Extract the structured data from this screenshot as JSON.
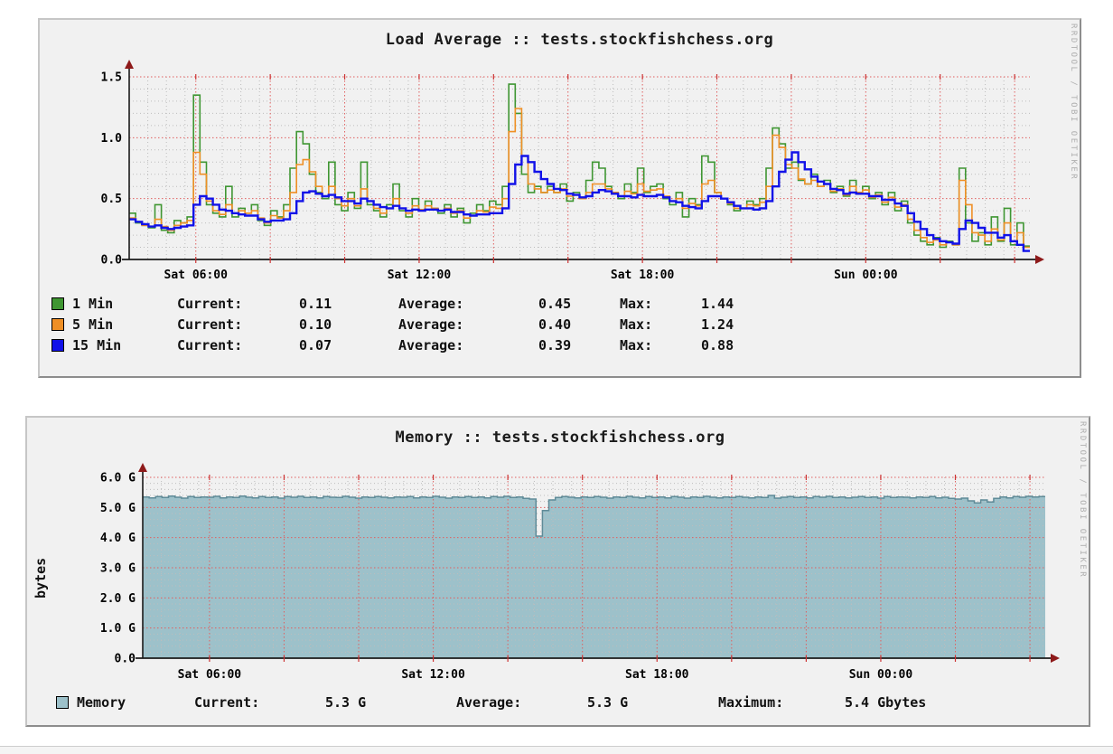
{
  "watermark": "RRDTOOL / TOBI OETIKER",
  "chart_data": [
    {
      "type": "line",
      "title": "Load Average :: tests.stockfishchess.org",
      "xlabel": "",
      "ylabel": "",
      "ylim": [
        0,
        1.5
      ],
      "x_window_hours": 24.2,
      "x_first_tick_hour": 1.79,
      "x_tick_interval_hours": 6,
      "x_tick_labels": [
        "Sat 06:00",
        "Sat 12:00",
        "Sat 18:00",
        "Sun 00:00"
      ],
      "y_tick_labels": [
        "0.0",
        "0.5",
        "1.0",
        "1.5"
      ],
      "grid": {
        "major_y": 0.5,
        "minor_y": 0.1,
        "major_x_hours": 2,
        "minor_x_hours": 0.5,
        "grid_on": true
      },
      "legend_position": "bottom-left",
      "series": [
        {
          "name": "1 Min",
          "color": "#3f9632",
          "width": 1.6,
          "values": [
            0.38,
            0.3,
            0.28,
            0.26,
            0.45,
            0.24,
            0.22,
            0.32,
            0.3,
            0.35,
            1.35,
            0.8,
            0.45,
            0.38,
            0.35,
            0.6,
            0.35,
            0.42,
            0.38,
            0.45,
            0.32,
            0.28,
            0.4,
            0.35,
            0.45,
            0.75,
            1.05,
            0.95,
            0.7,
            0.55,
            0.5,
            0.8,
            0.45,
            0.4,
            0.55,
            0.42,
            0.8,
            0.45,
            0.4,
            0.35,
            0.45,
            0.62,
            0.4,
            0.35,
            0.5,
            0.4,
            0.48,
            0.42,
            0.38,
            0.45,
            0.35,
            0.42,
            0.3,
            0.38,
            0.45,
            0.4,
            0.48,
            0.45,
            0.6,
            1.44,
            1.2,
            0.7,
            0.55,
            0.6,
            0.55,
            0.6,
            0.55,
            0.62,
            0.48,
            0.55,
            0.5,
            0.65,
            0.8,
            0.75,
            0.6,
            0.55,
            0.5,
            0.62,
            0.55,
            0.75,
            0.55,
            0.6,
            0.62,
            0.5,
            0.45,
            0.55,
            0.35,
            0.5,
            0.45,
            0.85,
            0.8,
            0.55,
            0.5,
            0.45,
            0.4,
            0.42,
            0.48,
            0.45,
            0.5,
            0.75,
            1.08,
            0.95,
            0.75,
            0.8,
            0.65,
            0.62,
            0.7,
            0.6,
            0.65,
            0.55,
            0.6,
            0.52,
            0.65,
            0.55,
            0.6,
            0.5,
            0.55,
            0.45,
            0.55,
            0.4,
            0.48,
            0.3,
            0.2,
            0.15,
            0.12,
            0.18,
            0.1,
            0.15,
            0.12,
            0.75,
            0.3,
            0.15,
            0.22,
            0.12,
            0.35,
            0.15,
            0.42,
            0.12,
            0.3,
            0.11
          ]
        },
        {
          "name": "5 Min",
          "color": "#ef8f25",
          "width": 1.6,
          "values": [
            0.34,
            0.31,
            0.28,
            0.27,
            0.33,
            0.27,
            0.24,
            0.28,
            0.3,
            0.32,
            0.88,
            0.7,
            0.48,
            0.4,
            0.37,
            0.45,
            0.38,
            0.4,
            0.38,
            0.4,
            0.34,
            0.3,
            0.36,
            0.34,
            0.4,
            0.55,
            0.78,
            0.82,
            0.72,
            0.6,
            0.52,
            0.6,
            0.5,
            0.44,
            0.5,
            0.44,
            0.58,
            0.48,
            0.42,
            0.38,
            0.42,
            0.5,
            0.42,
            0.38,
            0.44,
            0.41,
            0.44,
            0.42,
            0.4,
            0.42,
            0.38,
            0.4,
            0.34,
            0.36,
            0.4,
            0.39,
            0.43,
            0.42,
            0.5,
            1.05,
            1.24,
            0.85,
            0.62,
            0.58,
            0.55,
            0.57,
            0.55,
            0.58,
            0.52,
            0.53,
            0.5,
            0.55,
            0.62,
            0.62,
            0.58,
            0.55,
            0.52,
            0.56,
            0.54,
            0.62,
            0.56,
            0.57,
            0.58,
            0.52,
            0.48,
            0.5,
            0.42,
            0.46,
            0.44,
            0.62,
            0.65,
            0.55,
            0.5,
            0.46,
            0.42,
            0.42,
            0.45,
            0.44,
            0.47,
            0.6,
            1.02,
            0.92,
            0.78,
            0.75,
            0.66,
            0.62,
            0.65,
            0.6,
            0.62,
            0.56,
            0.58,
            0.53,
            0.6,
            0.55,
            0.57,
            0.51,
            0.53,
            0.47,
            0.51,
            0.43,
            0.45,
            0.33,
            0.24,
            0.18,
            0.14,
            0.16,
            0.12,
            0.14,
            0.12,
            0.65,
            0.45,
            0.22,
            0.2,
            0.15,
            0.25,
            0.16,
            0.3,
            0.15,
            0.22,
            0.1
          ]
        },
        {
          "name": "15 Min",
          "color": "#1212e8",
          "width": 2.4,
          "values": [
            0.33,
            0.31,
            0.29,
            0.27,
            0.28,
            0.26,
            0.25,
            0.26,
            0.27,
            0.28,
            0.45,
            0.52,
            0.5,
            0.45,
            0.41,
            0.4,
            0.38,
            0.37,
            0.36,
            0.36,
            0.33,
            0.31,
            0.32,
            0.32,
            0.33,
            0.38,
            0.48,
            0.55,
            0.56,
            0.54,
            0.52,
            0.53,
            0.51,
            0.48,
            0.48,
            0.46,
            0.5,
            0.48,
            0.45,
            0.43,
            0.42,
            0.44,
            0.42,
            0.4,
            0.41,
            0.4,
            0.41,
            0.41,
            0.4,
            0.41,
            0.39,
            0.39,
            0.37,
            0.36,
            0.37,
            0.37,
            0.38,
            0.38,
            0.42,
            0.62,
            0.78,
            0.85,
            0.8,
            0.72,
            0.66,
            0.62,
            0.58,
            0.57,
            0.54,
            0.53,
            0.51,
            0.52,
            0.55,
            0.57,
            0.56,
            0.54,
            0.52,
            0.52,
            0.51,
            0.53,
            0.52,
            0.52,
            0.53,
            0.51,
            0.48,
            0.47,
            0.44,
            0.43,
            0.42,
            0.48,
            0.52,
            0.52,
            0.5,
            0.47,
            0.44,
            0.42,
            0.42,
            0.41,
            0.42,
            0.48,
            0.6,
            0.72,
            0.82,
            0.88,
            0.8,
            0.74,
            0.68,
            0.64,
            0.62,
            0.58,
            0.57,
            0.54,
            0.55,
            0.54,
            0.54,
            0.52,
            0.52,
            0.49,
            0.49,
            0.46,
            0.44,
            0.38,
            0.31,
            0.25,
            0.2,
            0.17,
            0.15,
            0.14,
            0.13,
            0.25,
            0.32,
            0.3,
            0.26,
            0.22,
            0.22,
            0.18,
            0.2,
            0.15,
            0.12,
            0.07
          ]
        }
      ],
      "legend_rows": [
        {
          "label": "1 Min",
          "current_key": "Current:",
          "current": "0.11",
          "average_key": "Average:",
          "average": "0.45",
          "max_key": "Max:",
          "max": "1.44"
        },
        {
          "label": "5 Min",
          "current_key": "Current:",
          "current": "0.10",
          "average_key": "Average:",
          "average": "0.40",
          "max_key": "Max:",
          "max": "1.24"
        },
        {
          "label": "15 Min",
          "current_key": "Current:",
          "current": "0.07",
          "average_key": "Average:",
          "average": "0.39",
          "max_key": "Max:",
          "max": "0.88"
        }
      ]
    },
    {
      "type": "area",
      "title": "Memory :: tests.stockfishchess.org",
      "xlabel": "",
      "ylabel": "bytes",
      "ylim": [
        0,
        6.0
      ],
      "x_window_hours": 24.2,
      "x_first_tick_hour": 1.79,
      "x_tick_interval_hours": 6,
      "x_tick_labels": [
        "Sat 06:00",
        "Sat 12:00",
        "Sat 18:00",
        "Sun 00:00"
      ],
      "y_tick_labels": [
        "0.0",
        "1.0 G",
        "2.0 G",
        "3.0 G",
        "4.0 G",
        "5.0 G",
        "6.0 G"
      ],
      "grid": {
        "major_y": 1.0,
        "minor_y": 0.2,
        "major_x_hours": 2,
        "minor_x_hours": 0.5,
        "grid_on": true
      },
      "legend_position": "bottom-left",
      "series": [
        {
          "name": "Memory",
          "color": "#9dc1ca",
          "line_color": "#5f8b98",
          "width": 1.5,
          "values": [
            5.35,
            5.32,
            5.36,
            5.33,
            5.38,
            5.34,
            5.31,
            5.36,
            5.33,
            5.35,
            5.34,
            5.37,
            5.32,
            5.35,
            5.33,
            5.38,
            5.34,
            5.32,
            5.36,
            5.33,
            5.35,
            5.31,
            5.36,
            5.34,
            5.37,
            5.33,
            5.35,
            5.32,
            5.36,
            5.34,
            5.33,
            5.37,
            5.34,
            5.31,
            5.35,
            5.33,
            5.36,
            5.34,
            5.32,
            5.35,
            5.34,
            5.36,
            5.32,
            5.35,
            5.33,
            5.37,
            5.34,
            5.31,
            5.35,
            5.33,
            5.36,
            5.33,
            5.35,
            5.32,
            5.36,
            5.34,
            5.37,
            5.33,
            5.35,
            5.3,
            5.28,
            4.05,
            4.9,
            5.25,
            5.33,
            5.36,
            5.34,
            5.32,
            5.35,
            5.33,
            5.36,
            5.34,
            5.31,
            5.35,
            5.33,
            5.37,
            5.34,
            5.32,
            5.36,
            5.33,
            5.35,
            5.32,
            5.36,
            5.34,
            5.31,
            5.35,
            5.33,
            5.37,
            5.34,
            5.32,
            5.35,
            5.33,
            5.36,
            5.34,
            5.32,
            5.35,
            5.33,
            5.4,
            5.31,
            5.34,
            5.36,
            5.33,
            5.35,
            5.32,
            5.36,
            5.34,
            5.37,
            5.33,
            5.35,
            5.32,
            5.34,
            5.36,
            5.33,
            5.35,
            5.31,
            5.36,
            5.33,
            5.35,
            5.34,
            5.32,
            5.35,
            5.33,
            5.36,
            5.32,
            5.34,
            5.3,
            5.28,
            5.31,
            5.22,
            5.15,
            5.25,
            5.18,
            5.3,
            5.35,
            5.32,
            5.36,
            5.34,
            5.37,
            5.35,
            5.36
          ]
        }
      ],
      "legend_rows": [
        {
          "label": "Memory",
          "current_key": "Current:",
          "current": "5.3 G",
          "average_key": "Average:",
          "average": "5.3 G",
          "max_key": "Maximum:",
          "max": "5.4 Gbytes"
        }
      ]
    }
  ],
  "colors": {
    "grid_major": "#e06060",
    "grid_minor": "#bdbdbd",
    "axis": "#1a1a1a",
    "arrow": "#8e1a1a",
    "panel_bg": "#f1f1f1"
  }
}
